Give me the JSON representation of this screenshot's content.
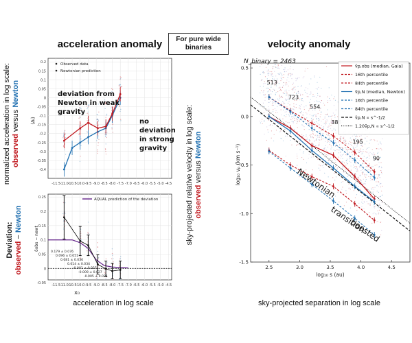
{
  "left_title": "acceleration anomaly",
  "center_box": {
    "line1": "For pure wide",
    "line2": "binaries"
  },
  "right_title": "velocity anomaly",
  "left_ylabel_top": {
    "line1": "normalized acceleration in log scale:",
    "obs": "observed",
    "versus": " versus ",
    "newton": "Newton"
  },
  "left_ylabel_bottom": {
    "line1": "Deviation:",
    "obs": "observed",
    "dash": " − ",
    "newton": "Newton"
  },
  "left_xlabel": "acceleration in log scale",
  "right_ylabel": {
    "line1": "sky-projected relative velocity in log scale:",
    "obs": "observed",
    "versus": " versus ",
    "newton": "Newton"
  },
  "right_xlabel": "sky-projected separation in log scale",
  "colors": {
    "observed": "#c0181e",
    "newton": "#1f6fb0",
    "aqual": "#6b2d8f"
  },
  "chart_data": [
    {
      "type": "line",
      "panel": "top-left",
      "ylabel": "⟨Δₗ⟩",
      "xlim": [
        -12.0,
        -4.3
      ],
      "ylim": [
        -0.45,
        0.22
      ],
      "yticks": [
        "0.2",
        "0.15",
        "0.1",
        "0.05",
        "0",
        "-0.05",
        "-0.1",
        "-0.15",
        "-0.2",
        "-0.25",
        "-0.3",
        "-0.35",
        "-0.4"
      ],
      "xticks": [
        "-11.5",
        "-11.0",
        "-10.5",
        "-10.0",
        "-9.5",
        "-9.0",
        "-8.5",
        "-8.0",
        "-7.5",
        "-7.0",
        "-6.5",
        "-6.0",
        "-5.5",
        "-5.0",
        "-4.5"
      ],
      "legend": [
        "Observed data",
        "Newtonian prediction"
      ],
      "annotations": [
        {
          "text": [
            "deviation from",
            "Newton in weak",
            "gravity"
          ]
        },
        {
          "text": [
            "no",
            "deviation",
            "in strong",
            "gravity"
          ]
        }
      ],
      "series": [
        {
          "name": "Observed data",
          "x": [
            -11.0,
            -10.0,
            -9.5,
            -8.9,
            -8.4,
            -8.0,
            -7.5
          ],
          "y": [
            -0.24,
            -0.17,
            -0.14,
            -0.17,
            -0.16,
            -0.09,
            0.02
          ]
        },
        {
          "name": "Newtonian prediction",
          "x": [
            -11.0,
            -10.5,
            -10.0,
            -9.5,
            -8.9,
            -8.4,
            -8.0,
            -7.5
          ],
          "y": [
            -0.4,
            -0.28,
            -0.25,
            -0.22,
            -0.19,
            -0.17,
            -0.1,
            0.0
          ]
        }
      ]
    },
    {
      "type": "line",
      "panel": "bottom-left",
      "ylabel": "δobs − newt",
      "xlabel": "x₀",
      "xlim": [
        -12.0,
        -4.3
      ],
      "ylim": [
        -0.04,
        0.26
      ],
      "yticks": [
        "0.25",
        "0.2",
        "0.15",
        "0.1",
        "0.05",
        "0",
        "-0.05"
      ],
      "legend": [
        "AQUAL prediction of the deviation"
      ],
      "annotations": [
        "0.179 ± 0.076",
        "0.096 ± 0.051",
        "0.081 ± 0.036",
        "0.014 ± 0.034",
        "-0.001 ± 0.027",
        "-0.009 ± 0.027",
        "-0.005 ± 0.031"
      ],
      "series": [
        {
          "name": "observed − Newton",
          "x": [
            -11.0,
            -10.0,
            -9.5,
            -8.9,
            -8.4,
            -8.0,
            -7.5
          ],
          "y": [
            0.179,
            0.096,
            0.081,
            0.014,
            -0.001,
            -0.009,
            -0.005
          ],
          "err": [
            0.076,
            0.051,
            0.036,
            0.034,
            0.027,
            0.027,
            0.031
          ]
        },
        {
          "name": "AQUAL prediction of the deviation",
          "x": [
            -12.0,
            -11.0,
            -10.5,
            -10.0,
            -9.5,
            -9.0,
            -8.5,
            -8.0,
            -7.5,
            -7.0
          ],
          "y": [
            0.1,
            0.1,
            0.1,
            0.09,
            0.07,
            0.03,
            0.01,
            0.005,
            0.003,
            0.002
          ]
        }
      ]
    },
    {
      "type": "line",
      "panel": "right",
      "annotation_nbin": "N_binary = 2463",
      "xlabel": "log₁₀ s (au)",
      "ylabel": "log₁₀ vₚ (km s⁻¹)",
      "xlim": [
        2.2,
        4.8
      ],
      "ylim": [
        -1.5,
        0.55
      ],
      "xticks": [
        "2.5",
        "3.0",
        "3.5",
        "4.0",
        "4.5"
      ],
      "yticks": [
        "0.5",
        "0.0",
        "-0.5",
        "-1.0",
        "-1.5"
      ],
      "legend": [
        "ṽp,obs (median, Gaia)",
        "16th percentile",
        "84th percentile",
        "ṽp,N (median, Newton)",
        "16th percentile",
        "84th percentile",
        "ṽp,N ∝ s^-1/2",
        "1.20ṽp,N ∝ s^-1/2"
      ],
      "bin_counts": [
        "513",
        "723",
        "554",
        "388",
        "195",
        "90"
      ],
      "regime_labels": [
        "Newtonian",
        "transition",
        "boosted"
      ],
      "series": [
        {
          "name": "obs median",
          "x": [
            2.5,
            2.85,
            3.2,
            3.55,
            3.9,
            4.22
          ],
          "y": [
            0.0,
            -0.12,
            -0.3,
            -0.4,
            -0.62,
            -0.85
          ]
        },
        {
          "name": "obs 84th",
          "x": [
            2.5,
            2.85,
            3.2,
            3.55,
            3.9,
            4.22
          ],
          "y": [
            0.2,
            0.06,
            -0.07,
            -0.2,
            -0.37,
            -0.57
          ]
        },
        {
          "name": "obs 16th",
          "x": [
            2.5,
            2.85,
            3.2,
            3.55,
            3.9,
            4.22
          ],
          "y": [
            -0.35,
            -0.5,
            -0.62,
            -0.72,
            -0.9,
            -1.07
          ]
        },
        {
          "name": "Newton median",
          "x": [
            2.5,
            2.85,
            3.2,
            3.55,
            3.9,
            4.22
          ],
          "y": [
            0.0,
            -0.15,
            -0.35,
            -0.53,
            -0.72,
            -0.88
          ]
        },
        {
          "name": "Newton 84th",
          "x": [
            2.5,
            2.85,
            3.2,
            3.55,
            3.9,
            4.22
          ],
          "y": [
            0.2,
            0.05,
            -0.12,
            -0.27,
            -0.45,
            -0.63
          ]
        },
        {
          "name": "Newton 16th",
          "x": [
            2.5,
            2.85,
            3.2,
            3.55,
            3.9,
            4.22
          ],
          "y": [
            -0.36,
            -0.53,
            -0.7,
            -0.87,
            -1.05,
            -1.22
          ]
        },
        {
          "name": "s^-1/2",
          "x": [
            2.2,
            4.8
          ],
          "y": [
            0.12,
            -1.18
          ]
        },
        {
          "name": "1.20 s^-1/2",
          "x": [
            2.2,
            4.8
          ],
          "y": [
            0.2,
            -1.1
          ]
        }
      ]
    }
  ]
}
